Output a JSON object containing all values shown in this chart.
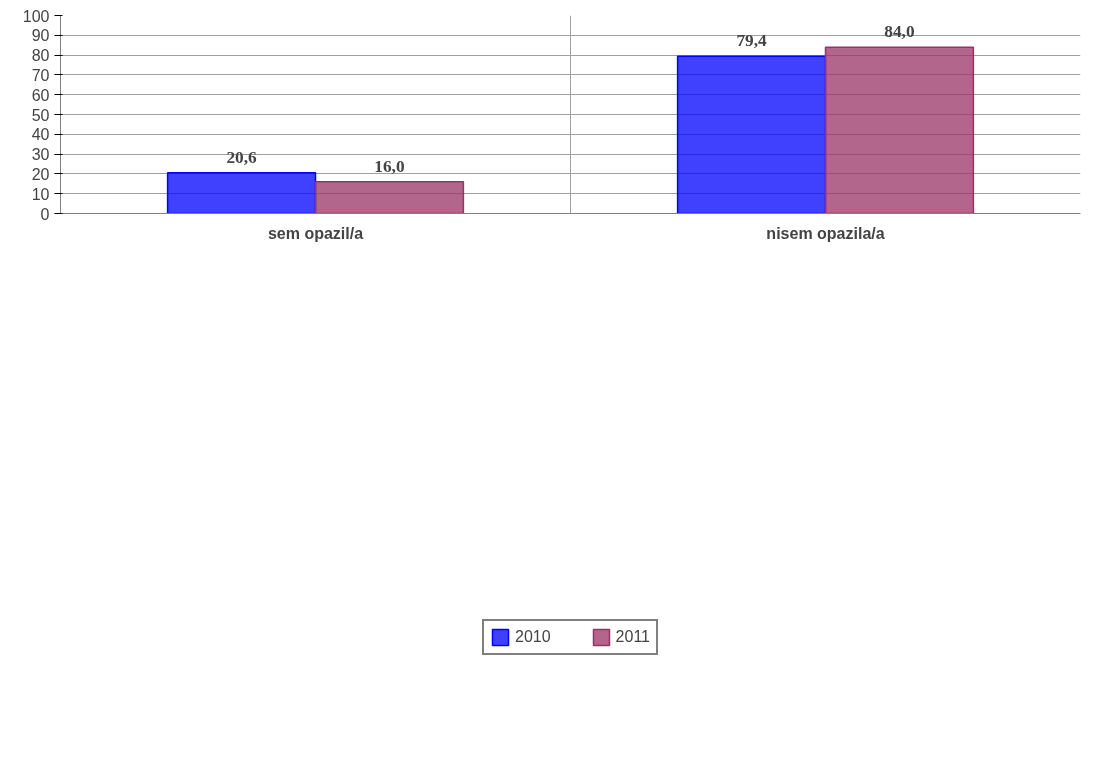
{
  "chart_data": {
    "type": "bar",
    "categories": [
      "sem opazil/a",
      "nisem opazila/a"
    ],
    "series": [
      {
        "name": "2010",
        "color": "#0000ff",
        "values": [
          20.6,
          79.4
        ],
        "value_labels": [
          "20,6",
          "79,4"
        ]
      },
      {
        "name": "2011",
        "color": "#993366",
        "values": [
          16.0,
          84.0
        ],
        "value_labels": [
          "16,0",
          "84,0"
        ]
      }
    ],
    "ylim": [
      0,
      100
    ],
    "yticks": [
      0,
      10,
      20,
      30,
      40,
      50,
      60,
      70,
      80,
      90,
      100
    ],
    "grid": true,
    "legend": "bottom"
  }
}
